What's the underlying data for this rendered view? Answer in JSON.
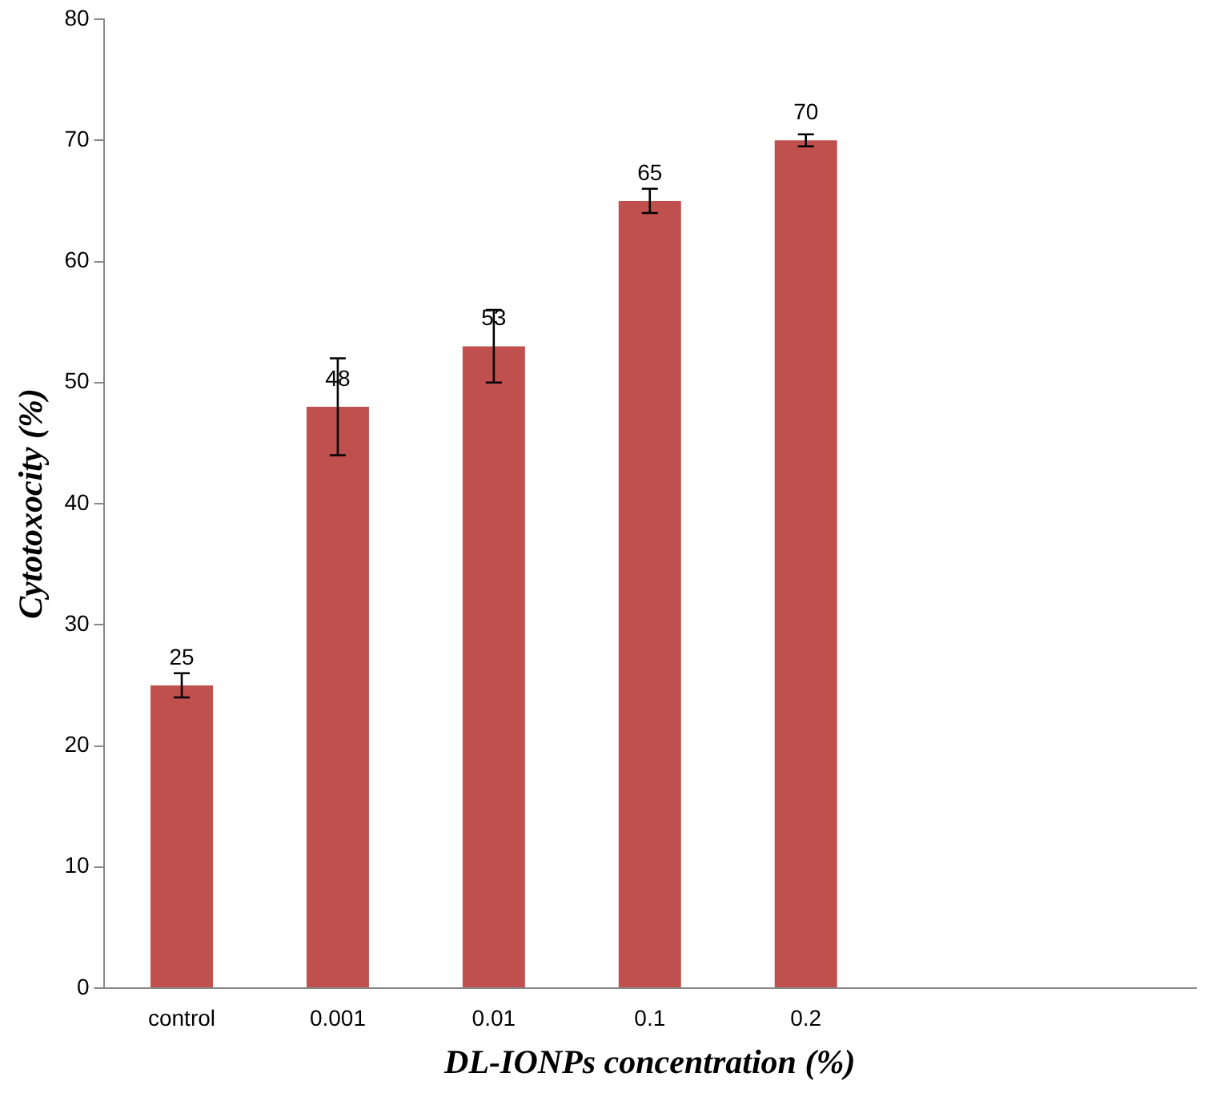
{
  "chart_data": {
    "type": "bar",
    "xlabel": "DL-IONPs concentration (%)",
    "ylabel": "Cytotoxocity (%)",
    "categories": [
      "control",
      "0.001",
      "0.01",
      "0.1",
      "0.2",
      null,
      null
    ],
    "values": [
      25,
      48,
      53,
      65,
      70,
      null,
      null
    ],
    "errors": [
      1,
      4,
      3,
      1,
      0.5,
      null,
      null
    ],
    "color": "#c0504d",
    "data_labels": true,
    "ylim": [
      0,
      80
    ],
    "yticks": [
      0,
      10,
      20,
      30,
      40,
      50,
      60,
      70,
      80
    ],
    "grid": false,
    "legend": false
  }
}
